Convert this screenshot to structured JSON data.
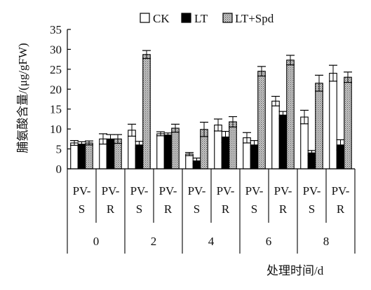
{
  "chart_data": {
    "type": "bar",
    "ylabel": "脯氨酸含量/(μg/gFW)",
    "xlabel": "处理时间/d",
    "ylim": [
      0,
      35
    ],
    "yticks": [
      0,
      5,
      10,
      15,
      20,
      25,
      30,
      35
    ],
    "legend_position": "top",
    "days": [
      "0",
      "2",
      "4",
      "6",
      "8"
    ],
    "subgroups": [
      "PV-\nS",
      "PV-\nR"
    ],
    "categories": [
      "0 PV-S",
      "0 PV-R",
      "2 PV-S",
      "2 PV-R",
      "4 PV-S",
      "4 PV-R",
      "6 PV-S",
      "6 PV-R",
      "8 PV-S",
      "8 PV-R"
    ],
    "series": [
      {
        "name": "CK",
        "color": "#ffffff",
        "pattern": "none",
        "values": [
          6.5,
          7.5,
          9.7,
          8.8,
          3.7,
          11.0,
          7.8,
          17.0,
          13.0,
          24.0
        ],
        "errors": [
          0.6,
          1.3,
          1.5,
          0.5,
          0.4,
          1.5,
          1.3,
          1.2,
          1.7,
          2.0
        ]
      },
      {
        "name": "LT",
        "color": "#000000",
        "pattern": "none",
        "values": [
          6.2,
          7.5,
          6.0,
          8.5,
          2.0,
          8.0,
          6.0,
          13.5,
          4.0,
          6.0
        ],
        "errors": [
          0.6,
          1.1,
          0.9,
          0.5,
          0.7,
          1.4,
          1.1,
          0.9,
          0.6,
          1.3
        ]
      },
      {
        "name": "LT+Spd",
        "color": "#b9b9b9",
        "pattern": "dots",
        "values": [
          6.5,
          7.5,
          28.7,
          10.2,
          9.9,
          11.8,
          24.5,
          27.3,
          21.5,
          23.0
        ],
        "errors": [
          0.5,
          1.1,
          1.0,
          1.0,
          1.8,
          1.3,
          1.2,
          1.2,
          2.0,
          1.3
        ]
      }
    ]
  }
}
